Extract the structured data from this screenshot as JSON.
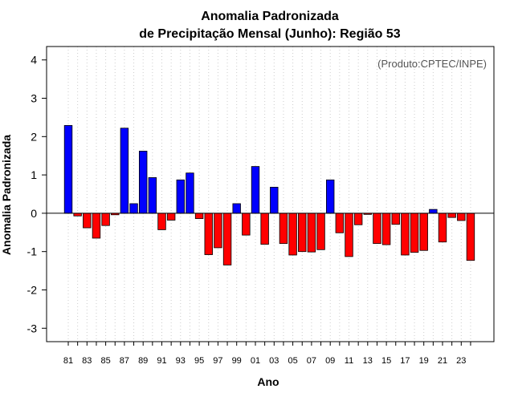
{
  "chart_data": {
    "type": "bar",
    "title": [
      "Anomalia Padronizada",
      "de Precipitação Mensal (Junho): Região 53"
    ],
    "xlabel": "Ano",
    "ylabel": "Anomalia Padronizada",
    "annotation": "(Produto:CPTEC/INPE)",
    "ylim": [
      -3.35,
      4.35
    ],
    "yticks": [
      -3,
      -2,
      -1,
      0,
      1,
      2,
      3,
      4
    ],
    "grid": "vertical-dotted",
    "categories": [
      "81",
      "82",
      "83",
      "84",
      "85",
      "86",
      "87",
      "88",
      "89",
      "90",
      "91",
      "92",
      "93",
      "94",
      "95",
      "96",
      "97",
      "98",
      "99",
      "00",
      "01",
      "02",
      "03",
      "04",
      "05",
      "06",
      "07",
      "08",
      "09",
      "10",
      "11",
      "12",
      "13",
      "14",
      "15",
      "16",
      "17",
      "18",
      "19",
      "20",
      "21",
      "22",
      "23",
      "24"
    ],
    "xtick_labels": [
      "81",
      "83",
      "85",
      "87",
      "89",
      "91",
      "93",
      "95",
      "97",
      "99",
      "01",
      "03",
      "05",
      "07",
      "09",
      "11",
      "13",
      "15",
      "17",
      "19",
      "21",
      "23"
    ],
    "values": [
      2.29,
      -0.07,
      -0.38,
      -0.65,
      -0.32,
      -0.04,
      2.22,
      0.25,
      1.62,
      0.93,
      -0.43,
      -0.18,
      0.87,
      1.05,
      -0.14,
      -1.08,
      -0.9,
      -1.35,
      0.25,
      -0.57,
      1.22,
      -0.81,
      0.68,
      -0.79,
      -1.09,
      -1.0,
      -1.01,
      -0.95,
      0.87,
      -0.51,
      -1.13,
      -0.3,
      -0.03,
      -0.79,
      -0.82,
      -0.29,
      -1.09,
      -1.02,
      -0.97,
      0.1,
      -0.75,
      -0.11,
      -0.19,
      -1.23
    ],
    "colors": {
      "positive": "#0000ff",
      "negative": "#ff0000",
      "grid": "#cccccc",
      "axis": "#000000"
    }
  }
}
